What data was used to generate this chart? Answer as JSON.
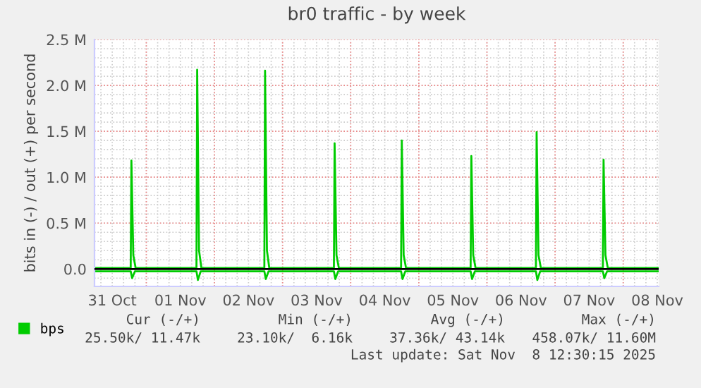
{
  "chart_data": {
    "type": "line",
    "title": "br0 traffic - by week",
    "ylabel": "bits in (-) / out (+) per second",
    "xlim": [
      "2025-10-31T05:45",
      "2025-11-08T12:30"
    ],
    "xticks": [
      {
        "value": "2025-10-31T12:00",
        "label": "31 Oct"
      },
      {
        "value": "2025-11-01T00:00",
        "label": null
      },
      {
        "value": "2025-11-01T12:00",
        "label": "01 Nov"
      },
      {
        "value": "2025-11-02T00:00",
        "label": null
      },
      {
        "value": "2025-11-02T12:00",
        "label": "02 Nov"
      },
      {
        "value": "2025-11-03T00:00",
        "label": null
      },
      {
        "value": "2025-11-03T12:00",
        "label": "03 Nov"
      },
      {
        "value": "2025-11-04T00:00",
        "label": null
      },
      {
        "value": "2025-11-04T12:00",
        "label": "04 Nov"
      },
      {
        "value": "2025-11-05T00:00",
        "label": null
      },
      {
        "value": "2025-11-05T12:00",
        "label": "05 Nov"
      },
      {
        "value": "2025-11-06T00:00",
        "label": null
      },
      {
        "value": "2025-11-06T12:00",
        "label": "06 Nov"
      },
      {
        "value": "2025-11-07T00:00",
        "label": null
      },
      {
        "value": "2025-11-07T12:00",
        "label": "07 Nov"
      },
      {
        "value": "2025-11-08T00:00",
        "label": null
      },
      {
        "value": "2025-11-08T12:00",
        "label": "08 Nov"
      }
    ],
    "ylim": [
      -0.19,
      2.5
    ],
    "yticks": [
      {
        "value": 0,
        "label": "0.0"
      },
      {
        "value": 0.5,
        "label": "0.5 M"
      },
      {
        "value": 1.0,
        "label": "1.0 M"
      },
      {
        "value": 1.5,
        "label": "1.5 M"
      },
      {
        "value": 2.0,
        "label": "2.0 M"
      },
      {
        "value": 2.5,
        "label": "2.5 M"
      }
    ],
    "grid": true,
    "legend": "bottom left",
    "ref_lines": [
      {
        "axis": "y",
        "value": 0,
        "color": "#000000"
      }
    ],
    "series": [
      {
        "name": "bps",
        "color": "#00cc00",
        "x": [
          "2025-10-31T05:45",
          "2025-10-31T18:30",
          "2025-10-31T18:45",
          "2025-10-31T19:25",
          "2025-10-31T20:15",
          "2025-11-01T17:40",
          "2025-11-01T17:55",
          "2025-11-01T18:35",
          "2025-11-01T19:25",
          "2025-11-02T17:35",
          "2025-11-02T17:50",
          "2025-11-02T18:30",
          "2025-11-02T19:20",
          "2025-11-03T18:05",
          "2025-11-03T18:20",
          "2025-11-03T19:00",
          "2025-11-03T19:50",
          "2025-11-04T17:45",
          "2025-11-04T18:00",
          "2025-11-04T18:40",
          "2025-11-04T19:30",
          "2025-11-05T18:15",
          "2025-11-05T18:30",
          "2025-11-05T19:10",
          "2025-11-05T20:00",
          "2025-11-06T17:15",
          "2025-11-06T17:30",
          "2025-11-06T18:10",
          "2025-11-06T19:00",
          "2025-11-07T16:50",
          "2025-11-07T17:05",
          "2025-11-07T17:45",
          "2025-11-07T18:35",
          "2025-11-08T12:30"
        ],
        "values": [
          0.01,
          0.01,
          1.18,
          0.15,
          0.01,
          0.01,
          2.17,
          0.2,
          0.01,
          0.01,
          2.16,
          0.2,
          0.01,
          0.01,
          1.37,
          0.15,
          0.01,
          0.01,
          1.4,
          0.15,
          0.01,
          0.01,
          1.23,
          0.15,
          0.01,
          0.01,
          1.49,
          0.15,
          0.01,
          0.01,
          1.19,
          0.15,
          0.01,
          0.01
        ]
      },
      {
        "color": "#00cc00",
        "x": [
          "2025-10-31T05:45",
          "2025-10-31T18:30",
          "2025-10-31T19:00",
          "2025-10-31T20:00",
          "2025-11-01T17:40",
          "2025-11-01T18:10",
          "2025-11-01T19:10",
          "2025-11-02T17:35",
          "2025-11-02T18:05",
          "2025-11-02T19:05",
          "2025-11-03T18:05",
          "2025-11-03T18:35",
          "2025-11-03T19:35",
          "2025-11-04T17:45",
          "2025-11-04T18:15",
          "2025-11-04T19:15",
          "2025-11-05T18:15",
          "2025-11-05T18:45",
          "2025-11-05T19:45",
          "2025-11-06T17:15",
          "2025-11-06T17:45",
          "2025-11-06T18:45",
          "2025-11-07T16:50",
          "2025-11-07T17:20",
          "2025-11-07T18:20",
          "2025-11-08T12:30"
        ],
        "values": [
          -0.025,
          -0.025,
          -0.1,
          -0.025,
          -0.025,
          -0.12,
          -0.025,
          -0.025,
          -0.11,
          -0.025,
          -0.025,
          -0.11,
          -0.025,
          -0.025,
          -0.11,
          -0.025,
          -0.025,
          -0.11,
          -0.025,
          -0.025,
          -0.12,
          -0.025,
          -0.025,
          -0.1,
          -0.025,
          -0.025
        ]
      }
    ],
    "annotations": [
      "Cur (-/+)",
      "Min (-/+)",
      "Avg (-/+)",
      "Max (-/+)",
      "25.50k/ 11.47k",
      "23.10k/  6.16k",
      "37.36k/ 43.14k",
      "458.07k/ 11.60M",
      "Last update: Sat Nov  8 12:30:15 2025"
    ]
  }
}
